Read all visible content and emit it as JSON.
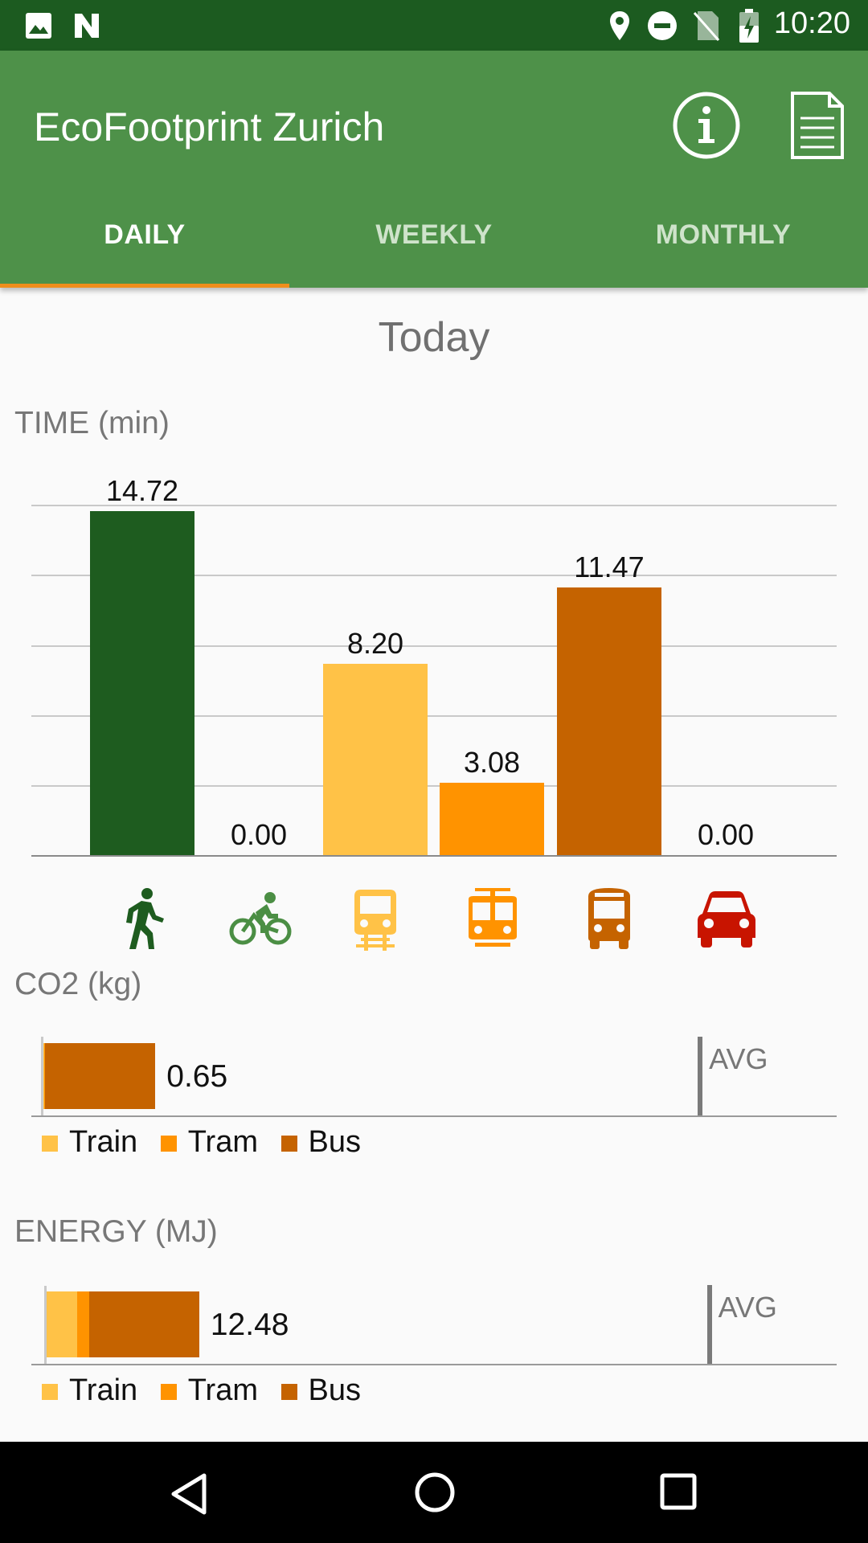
{
  "status_bar": {
    "time": "10:20",
    "left_icons": [
      "image-icon",
      "n-icon"
    ],
    "right_icons": [
      "location-icon",
      "dnd-icon",
      "no-sim-icon",
      "battery-icon"
    ]
  },
  "app": {
    "title": "EcoFootprint Zurich",
    "actions": [
      "info-icon",
      "document-icon"
    ]
  },
  "tabs": [
    {
      "label": "DAILY",
      "selected": true
    },
    {
      "label": "WEEKLY",
      "selected": false
    },
    {
      "label": "MONTHLY",
      "selected": false
    }
  ],
  "period_title": "Today",
  "colors": {
    "walk": "#1e5c1f",
    "bike": "#4b8e44",
    "train": "#ffc247",
    "tram": "#ff9300",
    "bus": "#c56300",
    "car": "#c81400",
    "accent": "#ef8e1c"
  },
  "chart_data": [
    {
      "type": "bar",
      "title": "TIME (min)",
      "categories": [
        "Walk",
        "Bike",
        "Train",
        "Tram",
        "Bus",
        "Car"
      ],
      "values": [
        14.72,
        0.0,
        8.2,
        3.08,
        11.47,
        0.0
      ],
      "value_labels": [
        "14.72",
        "0.00",
        "8.20",
        "3.08",
        "11.47",
        "0.00"
      ],
      "ylim": [
        0,
        15
      ],
      "grid": true
    },
    {
      "type": "bar",
      "orientation": "horizontal-stacked",
      "title": "CO2 (kg)",
      "series": [
        {
          "name": "Train",
          "values": [
            0.005
          ]
        },
        {
          "name": "Tram",
          "values": [
            0.005
          ]
        },
        {
          "name": "Bus",
          "values": [
            0.64
          ]
        }
      ],
      "total_label": "0.65",
      "avg_label": "AVG",
      "avg_value": 3.8,
      "xlim": [
        0,
        4.0
      ]
    },
    {
      "type": "bar",
      "orientation": "horizontal-stacked",
      "title": "ENERGY (MJ)",
      "series": [
        {
          "name": "Train",
          "values": [
            2.5
          ]
        },
        {
          "name": "Tram",
          "values": [
            1.0
          ]
        },
        {
          "name": "Bus",
          "values": [
            8.98
          ]
        }
      ],
      "total_label": "12.48",
      "avg_label": "AVG",
      "avg_value": 54,
      "xlim": [
        0,
        56
      ]
    }
  ],
  "legend": [
    "Train",
    "Tram",
    "Bus"
  ],
  "nav_bar": [
    "back-icon",
    "home-icon",
    "recents-icon"
  ]
}
